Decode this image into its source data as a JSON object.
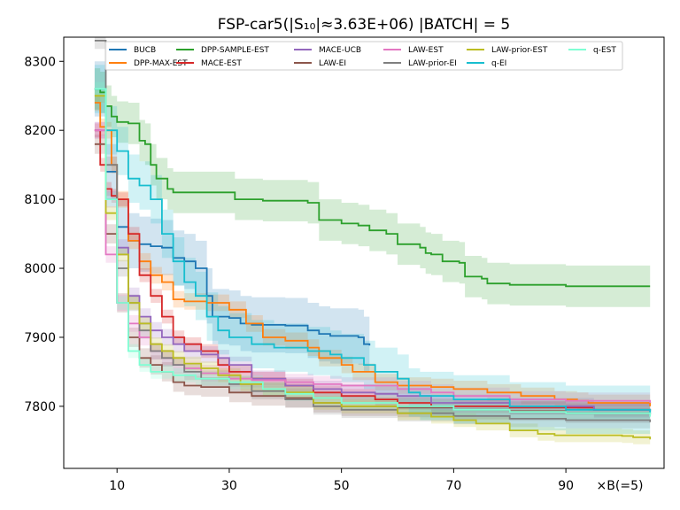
{
  "chart_data": {
    "type": "line",
    "title": "FSP-car5(|S₁₀|≈3.63E+06) |BATCH| = 5",
    "xlabel": "×B(=5)",
    "ylabel": "",
    "xlim": [
      0.5,
      107.5
    ],
    "ylim": [
      7710,
      8335
    ],
    "xticks": [
      10,
      30,
      50,
      70,
      90
    ],
    "yticks": [
      7800,
      7900,
      8000,
      8100,
      8200,
      8300
    ],
    "grid": false,
    "legend_position": "top",
    "band_opacity": 0.2,
    "series": [
      {
        "name": "BUCB",
        "color": "#1f77b4",
        "points": [
          [
            6,
            8260
          ],
          [
            8,
            8140
          ],
          [
            10,
            8060
          ],
          [
            12,
            8040
          ],
          [
            14,
            8035
          ],
          [
            16,
            8032
          ],
          [
            18,
            8030
          ],
          [
            20,
            8015
          ],
          [
            22,
            8010
          ],
          [
            24,
            8000
          ],
          [
            26,
            7960
          ],
          [
            27,
            7930
          ],
          [
            30,
            7928
          ],
          [
            32,
            7920
          ],
          [
            34,
            7918
          ],
          [
            40,
            7917
          ],
          [
            44,
            7910
          ],
          [
            46,
            7905
          ],
          [
            48,
            7902
          ],
          [
            53,
            7900
          ],
          [
            54,
            7890
          ],
          [
            55,
            7888
          ]
        ],
        "band": 40
      },
      {
        "name": "DPP-MAX-EST",
        "color": "#ff7f0e",
        "points": [
          [
            6,
            8240
          ],
          [
            7,
            8205
          ],
          [
            8,
            8200
          ],
          [
            9,
            8150
          ],
          [
            10,
            8100
          ],
          [
            12,
            8040
          ],
          [
            14,
            8010
          ],
          [
            16,
            7990
          ],
          [
            18,
            7980
          ],
          [
            20,
            7955
          ],
          [
            22,
            7952
          ],
          [
            26,
            7950
          ],
          [
            30,
            7940
          ],
          [
            33,
            7920
          ],
          [
            36,
            7900
          ],
          [
            40,
            7895
          ],
          [
            44,
            7885
          ],
          [
            46,
            7870
          ],
          [
            50,
            7860
          ],
          [
            52,
            7850
          ],
          [
            56,
            7835
          ],
          [
            60,
            7830
          ],
          [
            66,
            7828
          ],
          [
            70,
            7825
          ],
          [
            76,
            7820
          ],
          [
            82,
            7815
          ],
          [
            88,
            7810
          ],
          [
            92,
            7808
          ],
          [
            94,
            7805
          ],
          [
            105,
            7800
          ]
        ],
        "band": 12
      },
      {
        "name": "DPP-SAMPLE-EST",
        "color": "#2ca02c",
        "points": [
          [
            6,
            8260
          ],
          [
            7,
            8255
          ],
          [
            8,
            8235
          ],
          [
            9,
            8220
          ],
          [
            10,
            8212
          ],
          [
            12,
            8210
          ],
          [
            14,
            8185
          ],
          [
            15,
            8180
          ],
          [
            16,
            8150
          ],
          [
            17,
            8130
          ],
          [
            19,
            8115
          ],
          [
            20,
            8110
          ],
          [
            31,
            8100
          ],
          [
            36,
            8098
          ],
          [
            44,
            8095
          ],
          [
            46,
            8070
          ],
          [
            50,
            8065
          ],
          [
            53,
            8062
          ],
          [
            55,
            8055
          ],
          [
            58,
            8050
          ],
          [
            60,
            8035
          ],
          [
            64,
            8030
          ],
          [
            65,
            8022
          ],
          [
            66,
            8020
          ],
          [
            68,
            8010
          ],
          [
            71,
            8008
          ],
          [
            72,
            7988
          ],
          [
            75,
            7985
          ],
          [
            76,
            7978
          ],
          [
            80,
            7976
          ],
          [
            90,
            7974
          ],
          [
            105,
            7974
          ]
        ],
        "band": 30
      },
      {
        "name": "MACE-EST",
        "color": "#d62728",
        "points": [
          [
            6,
            8200
          ],
          [
            7,
            8150
          ],
          [
            8,
            8115
          ],
          [
            9,
            8105
          ],
          [
            10,
            8100
          ],
          [
            12,
            8050
          ],
          [
            14,
            7990
          ],
          [
            16,
            7960
          ],
          [
            18,
            7930
          ],
          [
            20,
            7900
          ],
          [
            22,
            7890
          ],
          [
            25,
            7880
          ],
          [
            28,
            7860
          ],
          [
            30,
            7850
          ],
          [
            34,
            7840
          ],
          [
            40,
            7830
          ],
          [
            45,
            7820
          ],
          [
            50,
            7815
          ],
          [
            56,
            7810
          ],
          [
            60,
            7805
          ],
          [
            66,
            7800
          ],
          [
            80,
            7798
          ],
          [
            95,
            7795
          ],
          [
            105,
            7793
          ]
        ],
        "band": 10
      },
      {
        "name": "MACE-UCB",
        "color": "#9467bd",
        "points": [
          [
            6,
            8200
          ],
          [
            8,
            8100
          ],
          [
            10,
            8030
          ],
          [
            12,
            7960
          ],
          [
            14,
            7930
          ],
          [
            16,
            7910
          ],
          [
            18,
            7900
          ],
          [
            20,
            7890
          ],
          [
            22,
            7880
          ],
          [
            25,
            7875
          ],
          [
            28,
            7870
          ],
          [
            30,
            7860
          ],
          [
            34,
            7840
          ],
          [
            40,
            7830
          ],
          [
            45,
            7825
          ],
          [
            50,
            7820
          ],
          [
            56,
            7818
          ],
          [
            60,
            7815
          ],
          [
            66,
            7805
          ],
          [
            80,
            7800
          ],
          [
            95,
            7795
          ],
          [
            105,
            7792
          ]
        ],
        "band": 12
      },
      {
        "name": "LAW-EI",
        "color": "#8c564b",
        "points": [
          [
            6,
            8180
          ],
          [
            8,
            8050
          ],
          [
            10,
            7950
          ],
          [
            12,
            7900
          ],
          [
            14,
            7870
          ],
          [
            16,
            7860
          ],
          [
            18,
            7850
          ],
          [
            20,
            7835
          ],
          [
            22,
            7830
          ],
          [
            25,
            7828
          ],
          [
            30,
            7820
          ],
          [
            34,
            7815
          ],
          [
            40,
            7812
          ],
          [
            45,
            7805
          ],
          [
            50,
            7800
          ],
          [
            60,
            7798
          ],
          [
            70,
            7795
          ],
          [
            80,
            7793
          ],
          [
            90,
            7790
          ],
          [
            105,
            7788
          ]
        ],
        "band": 14
      },
      {
        "name": "LAW-EST",
        "color": "#e377c2",
        "points": [
          [
            6,
            8200
          ],
          [
            8,
            8020
          ],
          [
            10,
            7950
          ],
          [
            12,
            7920
          ],
          [
            14,
            7900
          ],
          [
            16,
            7880
          ],
          [
            18,
            7870
          ],
          [
            20,
            7860
          ],
          [
            22,
            7855
          ],
          [
            25,
            7848
          ],
          [
            30,
            7840
          ],
          [
            34,
            7838
          ],
          [
            40,
            7835
          ],
          [
            45,
            7832
          ],
          [
            50,
            7830
          ],
          [
            60,
            7825
          ],
          [
            66,
            7820
          ],
          [
            70,
            7815
          ],
          [
            80,
            7810
          ],
          [
            90,
            7808
          ],
          [
            105,
            7805
          ]
        ],
        "band": 12
      },
      {
        "name": "LAW-prior-EI",
        "color": "#7f7f7f",
        "points": [
          [
            6,
            8330
          ],
          [
            8,
            8150
          ],
          [
            10,
            8000
          ],
          [
            12,
            7950
          ],
          [
            14,
            7910
          ],
          [
            16,
            7880
          ],
          [
            18,
            7870
          ],
          [
            20,
            7860
          ],
          [
            22,
            7850
          ],
          [
            25,
            7840
          ],
          [
            30,
            7832
          ],
          [
            34,
            7822
          ],
          [
            40,
            7810
          ],
          [
            45,
            7800
          ],
          [
            50,
            7795
          ],
          [
            60,
            7790
          ],
          [
            70,
            7786
          ],
          [
            80,
            7782
          ],
          [
            90,
            7780
          ],
          [
            105,
            7777
          ]
        ],
        "band": 12
      },
      {
        "name": "LAW-prior-EST",
        "color": "#bcbd22",
        "points": [
          [
            6,
            8250
          ],
          [
            8,
            8080
          ],
          [
            10,
            8020
          ],
          [
            12,
            7950
          ],
          [
            14,
            7920
          ],
          [
            16,
            7890
          ],
          [
            18,
            7880
          ],
          [
            20,
            7870
          ],
          [
            22,
            7862
          ],
          [
            25,
            7855
          ],
          [
            28,
            7845
          ],
          [
            32,
            7832
          ],
          [
            36,
            7825
          ],
          [
            40,
            7820
          ],
          [
            45,
            7805
          ],
          [
            50,
            7800
          ],
          [
            60,
            7790
          ],
          [
            66,
            7785
          ],
          [
            70,
            7780
          ],
          [
            74,
            7775
          ],
          [
            80,
            7765
          ],
          [
            85,
            7760
          ],
          [
            88,
            7758
          ],
          [
            95,
            7758
          ],
          [
            100,
            7757
          ],
          [
            102,
            7755
          ],
          [
            105,
            7752
          ]
        ],
        "band": 10
      },
      {
        "name": "q-EI",
        "color": "#17becf",
        "points": [
          [
            6,
            8260
          ],
          [
            8,
            8200
          ],
          [
            10,
            8170
          ],
          [
            12,
            8130
          ],
          [
            14,
            8120
          ],
          [
            16,
            8100
          ],
          [
            18,
            8050
          ],
          [
            20,
            8010
          ],
          [
            22,
            7980
          ],
          [
            24,
            7960
          ],
          [
            26,
            7930
          ],
          [
            28,
            7910
          ],
          [
            30,
            7900
          ],
          [
            34,
            7890
          ],
          [
            38,
            7885
          ],
          [
            44,
            7880
          ],
          [
            48,
            7875
          ],
          [
            50,
            7870
          ],
          [
            54,
            7860
          ],
          [
            56,
            7850
          ],
          [
            60,
            7840
          ],
          [
            62,
            7820
          ],
          [
            64,
            7815
          ],
          [
            70,
            7810
          ],
          [
            80,
            7800
          ],
          [
            90,
            7795
          ],
          [
            105,
            7790
          ]
        ],
        "band": 35
      },
      {
        "name": "q-EST",
        "color": "#7fffd4",
        "points": [
          [
            6,
            8260
          ],
          [
            8,
            8100
          ],
          [
            10,
            7950
          ],
          [
            12,
            7880
          ],
          [
            14,
            7860
          ],
          [
            16,
            7850
          ],
          [
            20,
            7845
          ],
          [
            24,
            7840
          ],
          [
            30,
            7835
          ],
          [
            36,
            7825
          ],
          [
            40,
            7818
          ],
          [
            45,
            7812
          ],
          [
            50,
            7805
          ],
          [
            60,
            7800
          ],
          [
            70,
            7795
          ],
          [
            80,
            7792
          ],
          [
            90,
            7790
          ],
          [
            105,
            7785
          ]
        ],
        "band": 10
      }
    ]
  }
}
